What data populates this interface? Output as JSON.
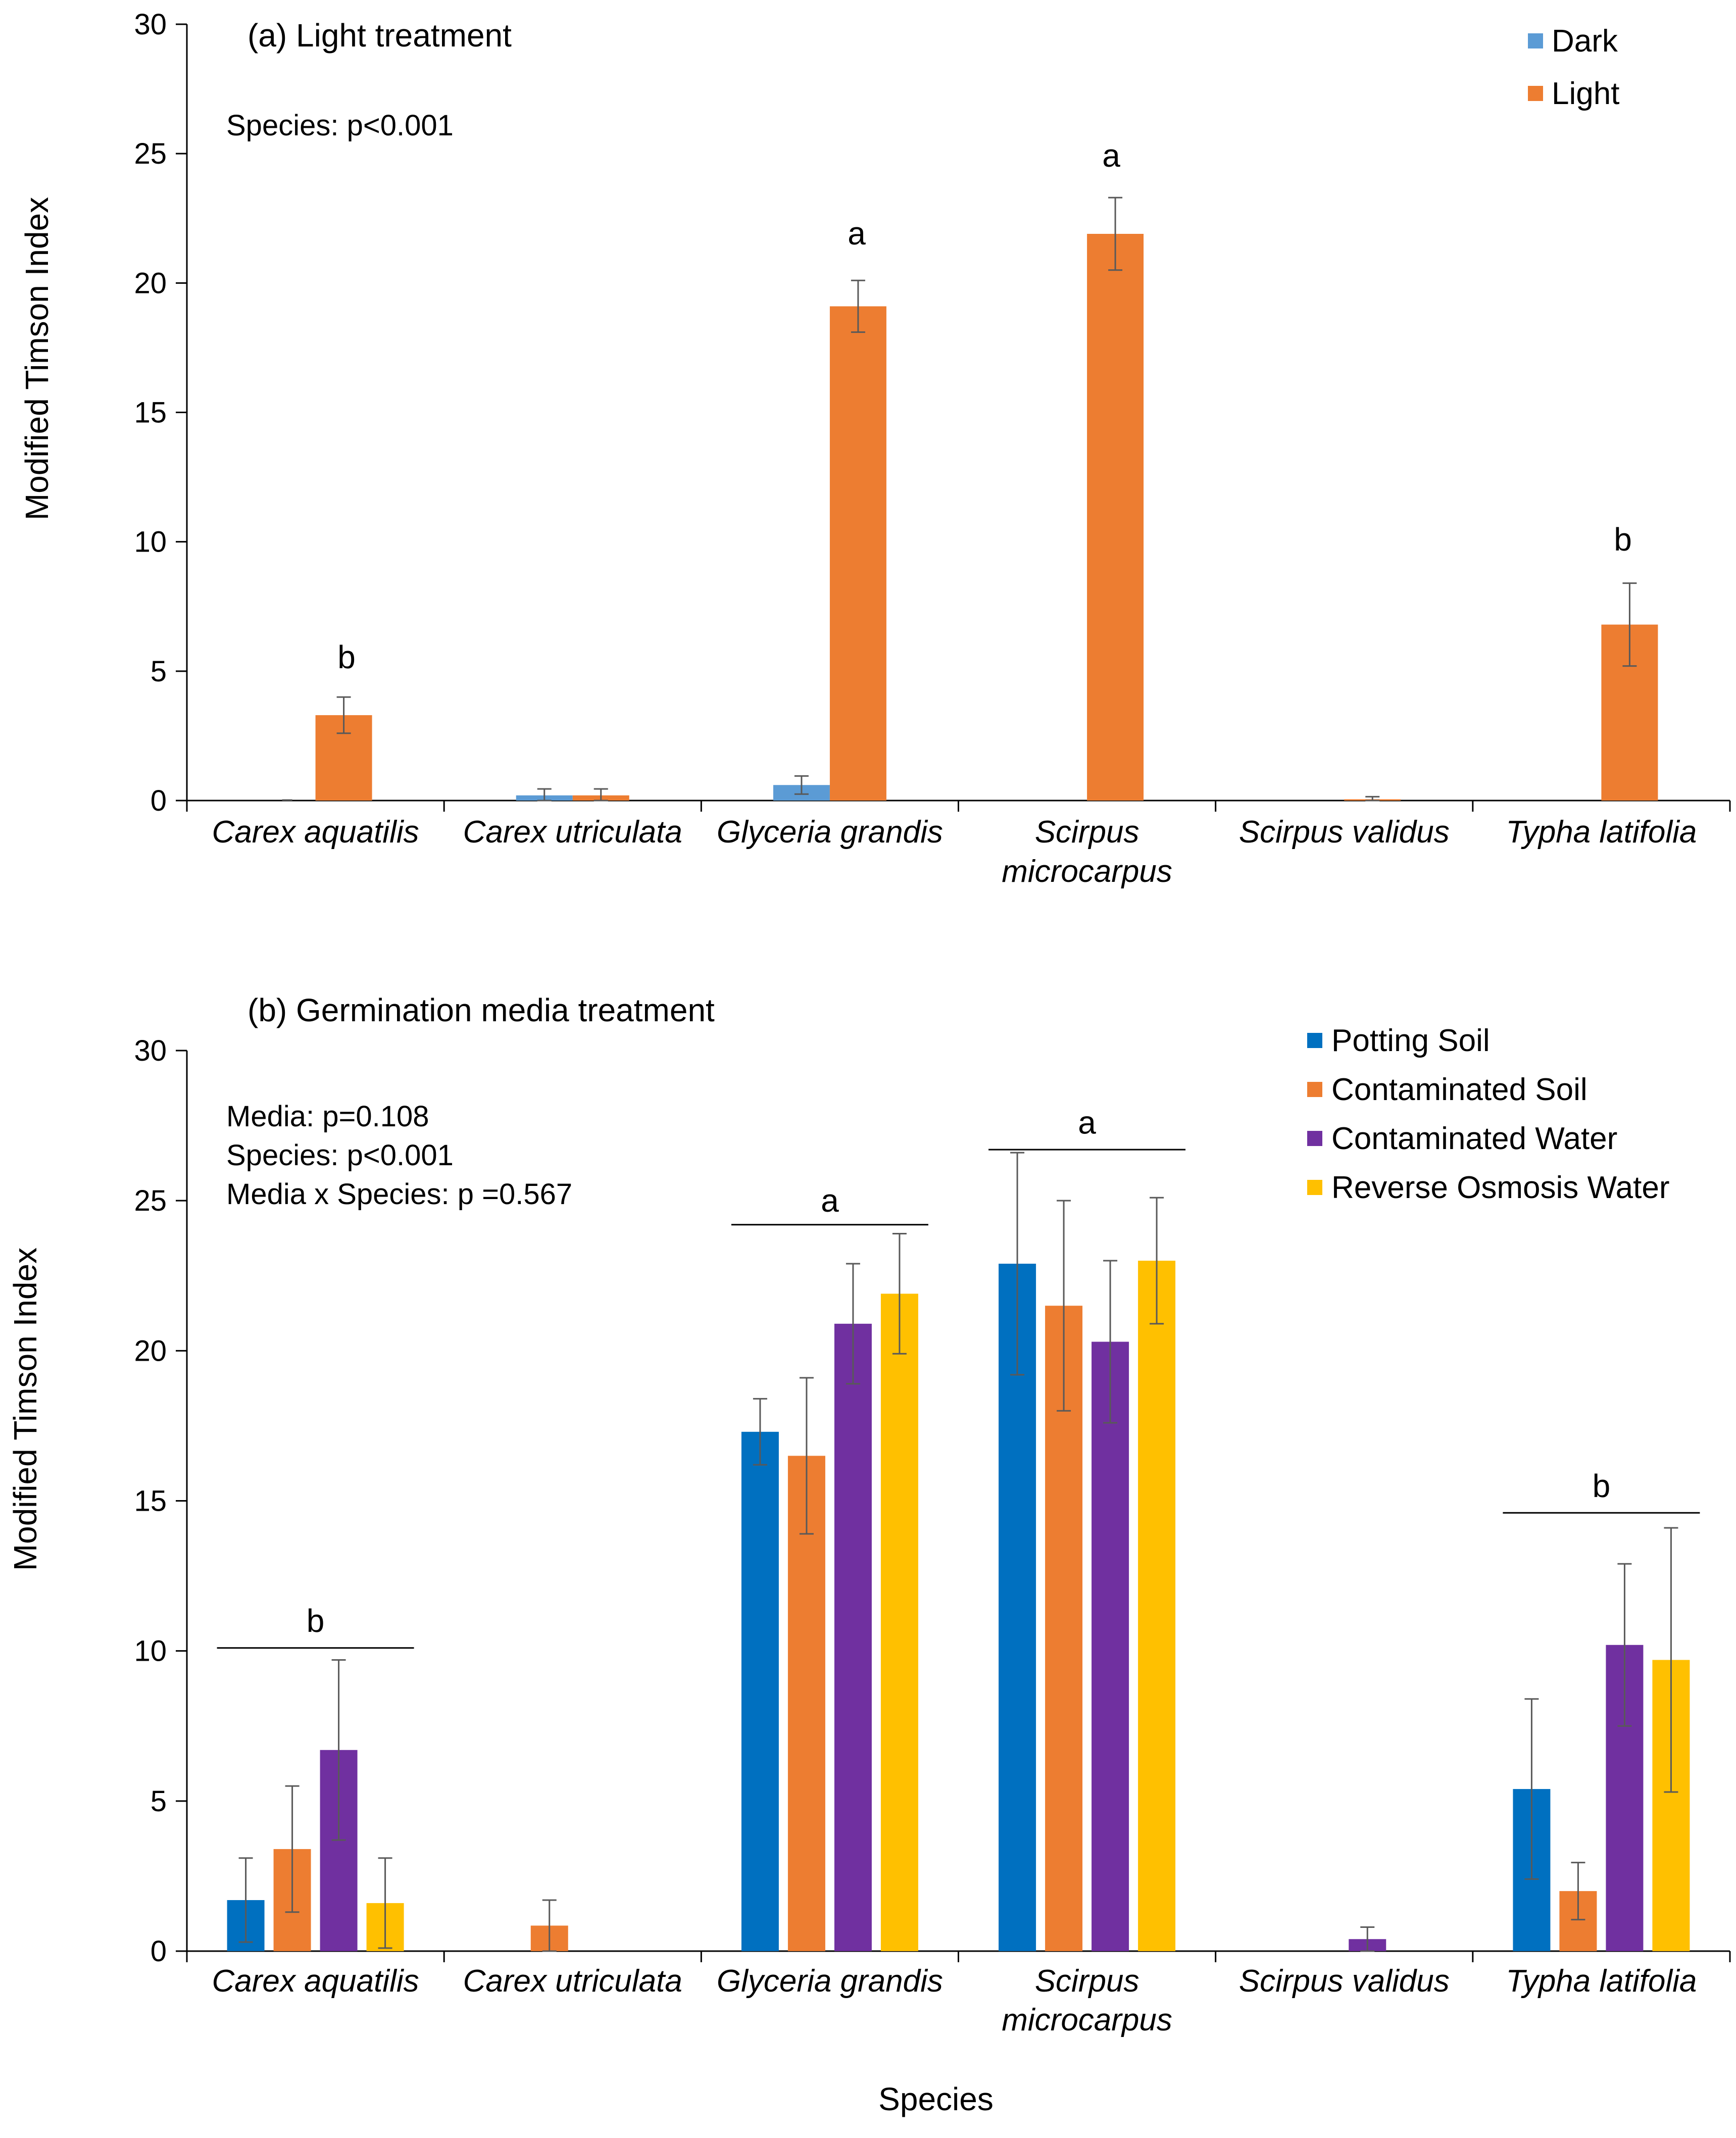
{
  "chart_data": [
    {
      "type": "bar",
      "title": "(a) Light treatment",
      "ylabel": "Modified Timson Index",
      "xlabel": "",
      "ylim": [
        0,
        30
      ],
      "yticks": [
        0,
        5,
        10,
        15,
        20,
        25,
        30
      ],
      "categories": [
        "Carex aquatilis",
        "Carex utriculata",
        "Glyceria grandis",
        "Scirpus microcarpus",
        "Scirpus validus",
        "Typha latifolia"
      ],
      "series": [
        {
          "name": "Dark",
          "color": "#5B9BD5",
          "values": [
            0.0,
            0.2,
            0.6,
            0.0,
            0.0,
            0.0
          ],
          "errors": [
            0.0,
            0.25,
            0.35,
            0.0,
            0.0,
            0.0
          ]
        },
        {
          "name": "Light",
          "color": "#ED7D31",
          "values": [
            3.3,
            0.2,
            19.1,
            21.9,
            0.05,
            6.8
          ],
          "errors": [
            0.7,
            0.25,
            1.0,
            1.4,
            0.1,
            1.6
          ]
        }
      ],
      "annotations": [
        "Species: p<0.001"
      ],
      "group_letters": [
        {
          "category": "Carex aquatilis",
          "letter": "b"
        },
        {
          "category": "Glyceria grandis",
          "letter": "a"
        },
        {
          "category": "Scirpus microcarpus",
          "letter": "a"
        },
        {
          "category": "Typha latifolia",
          "letter": "b"
        }
      ],
      "legend_position": "top-right"
    },
    {
      "type": "bar",
      "title": "(b) Germination media treatment",
      "ylabel": "Modified Timson Index",
      "xlabel": "Species",
      "ylim": [
        0,
        30
      ],
      "yticks": [
        0,
        5,
        10,
        15,
        20,
        25,
        30
      ],
      "categories": [
        "Carex aquatilis",
        "Carex utriculata",
        "Glyceria grandis",
        "Scirpus microcarpus",
        "Scirpus validus",
        "Typha latifolia"
      ],
      "series": [
        {
          "name": "Potting Soil",
          "color": "#0070C0",
          "values": [
            1.7,
            0.0,
            17.3,
            22.9,
            0.0,
            5.4
          ],
          "errors": [
            1.4,
            0.0,
            1.1,
            3.7,
            0.0,
            3.0
          ]
        },
        {
          "name": "Contaminated Soil",
          "color": "#ED7D31",
          "values": [
            3.4,
            0.85,
            16.5,
            21.5,
            0.0,
            2.0
          ],
          "errors": [
            2.1,
            0.85,
            2.6,
            3.5,
            0.0,
            0.95
          ]
        },
        {
          "name": "Contaminated Water",
          "color": "#7030A0",
          "values": [
            6.7,
            0.0,
            20.9,
            20.3,
            0.4,
            10.2
          ],
          "errors": [
            3.0,
            0.0,
            2.0,
            2.7,
            0.4,
            2.7
          ]
        },
        {
          "name": "Reverse Osmosis Water",
          "color": "#FFC000",
          "values": [
            1.6,
            0.0,
            21.9,
            23.0,
            0.0,
            9.7
          ],
          "errors": [
            1.5,
            0.0,
            2.0,
            2.1,
            0.0,
            4.4
          ]
        }
      ],
      "annotations": [
        "Media: p=0.108",
        "Species: p<0.001",
        "Media x Species: p =0.567"
      ],
      "group_letters": [
        {
          "category": "Carex aquatilis",
          "letter": "b",
          "line_value": 10.1,
          "letter_value": 11.0
        },
        {
          "category": "Glyceria grandis",
          "letter": "a",
          "line_value": 24.2,
          "letter_value": 25.0
        },
        {
          "category": "Scirpus microcarpus",
          "letter": "a",
          "line_value": 26.7,
          "letter_value": 27.6
        },
        {
          "category": "Typha latifolia",
          "letter": "b",
          "line_value": 14.6,
          "letter_value": 15.5
        }
      ],
      "legend_position": "top-right"
    }
  ]
}
